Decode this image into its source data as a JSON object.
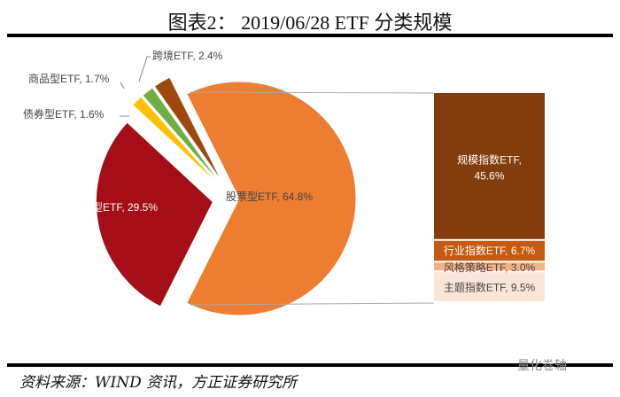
{
  "title": "图表2： 2019/06/28 ETF 分类规模",
  "source": "资料来源：WIND 资讯，方正证券研究所",
  "watermark": "量化卷轴",
  "chart_data": {
    "type": "pie-of-bar",
    "title": "2019/06/28 ETF 分类规模",
    "pie": [
      {
        "name": "股票型ETF",
        "value": 64.8,
        "label": "股票型ETF, 64.8%",
        "color": "#ED7D31"
      },
      {
        "name": "货币型ETF",
        "value": 29.5,
        "label": "货币型ETF, 29.5%",
        "color": "#A50E16"
      },
      {
        "name": "债券型ETF",
        "value": 1.6,
        "label": "债券型ETF, 1.6%",
        "color": "#FFC000"
      },
      {
        "name": "商品型ETF",
        "value": 1.7,
        "label": "商品型ETF, 1.7%",
        "color": "#70AD47"
      },
      {
        "name": "跨境ETF",
        "value": 2.4,
        "label": "跨境ETF, 2.4%",
        "color": "#9E480E"
      }
    ],
    "bar": [
      {
        "name": "规模指数ETF",
        "value": 45.6,
        "label_line1": "规模指数ETF,",
        "label_line2": "45.6%",
        "color": "#843C0C"
      },
      {
        "name": "行业指数ETF",
        "value": 6.7,
        "label": "行业指数ETF, 6.7%",
        "color": "#C55A11"
      },
      {
        "name": "风格策略ETF",
        "value": 3.0,
        "label": "风格策略ETF, 3.0%",
        "color": "#F4B183"
      },
      {
        "name": "主题指数ETF",
        "value": 9.5,
        "label": "主题指数ETF, 9.5%",
        "color": "#FBE5D6"
      }
    ]
  }
}
